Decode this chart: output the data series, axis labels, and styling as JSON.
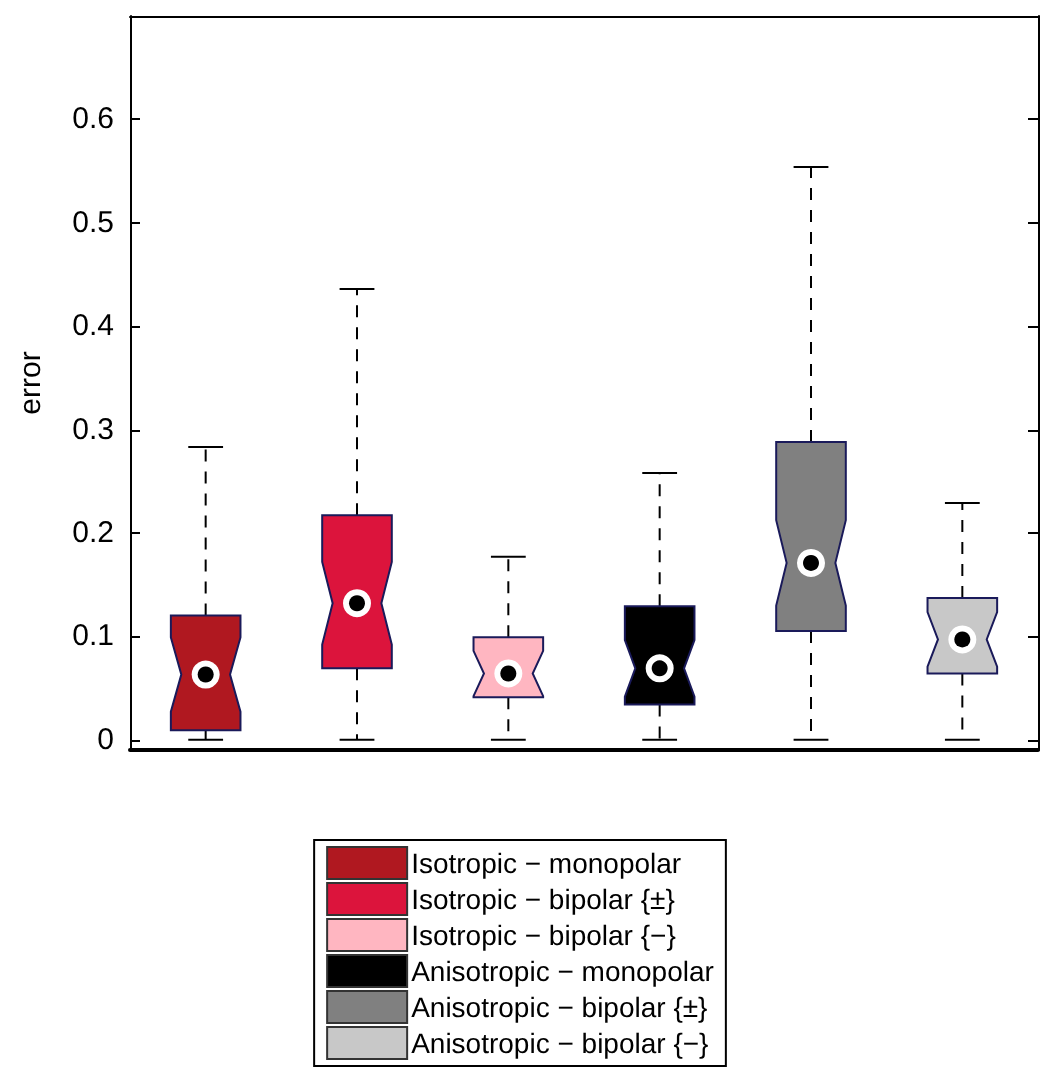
{
  "chart_data": {
    "type": "box",
    "ylabel": "error",
    "categories": [
      null,
      null,
      null,
      null,
      null,
      null
    ],
    "ylim": [
      -0.01,
      0.7
    ],
    "yticks": [
      0,
      0.1,
      0.2,
      0.3,
      0.4,
      0.5,
      0.6
    ],
    "legend": "bottom",
    "marker": "circle",
    "series": [
      {
        "name": "Isotropic − monopolar",
        "color": "#b01820",
        "boxes": [
          {
            "low": 0,
            "q1": 0.009,
            "median": 0.063,
            "q3": 0.12,
            "high": 0.283
          },
          null,
          null,
          null,
          null,
          null
        ]
      },
      {
        "name": "Isotropic − bipolar {±}",
        "color": "#dc143c",
        "boxes": [
          null,
          {
            "low": 0,
            "q1": 0.069,
            "median": 0.132,
            "q3": 0.217,
            "high": 0.436
          },
          null,
          null,
          null,
          null
        ]
      },
      {
        "name": "Isotropic − bipolar {−}",
        "color": "#ffb6c1",
        "boxes": [
          null,
          null,
          {
            "low": 0,
            "q1": 0.041,
            "median": 0.064,
            "q3": 0.099,
            "high": 0.177
          },
          null,
          null,
          null
        ]
      },
      {
        "name": "Anisotropic − monopolar",
        "color": "#000000",
        "boxes": [
          null,
          null,
          null,
          {
            "low": 0,
            "q1": 0.034,
            "median": 0.069,
            "q3": 0.129,
            "high": 0.258
          },
          null,
          null
        ]
      },
      {
        "name": "Anisotropic − bipolar {±}",
        "color": "#808080",
        "boxes": [
          null,
          null,
          null,
          null,
          {
            "low": 0,
            "q1": 0.105,
            "median": 0.171,
            "q3": 0.288,
            "high": 0.554
          },
          null
        ]
      },
      {
        "name": "Anisotropic − bipolar {−}",
        "color": "#c8c8c8",
        "boxes": [
          null,
          null,
          null,
          null,
          null,
          {
            "low": 0,
            "q1": 0.064,
            "median": 0.097,
            "q3": 0.137,
            "high": 0.229
          }
        ]
      }
    ]
  }
}
